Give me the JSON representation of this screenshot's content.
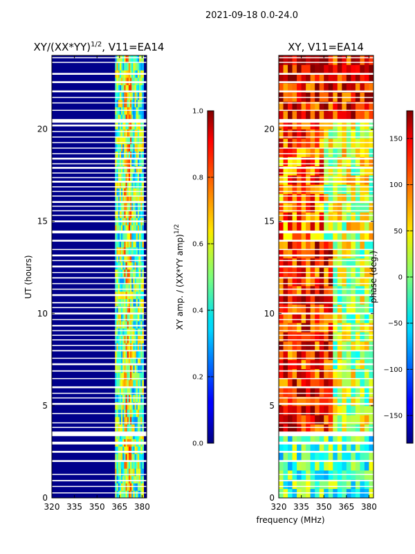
{
  "suptitle": "2021-09-18 0.0-24.0",
  "chart_data": [
    {
      "type": "heatmap",
      "title": "XY/(XX*YY)^(1/2), V11=EA14",
      "title_main": "XY/(XX*YY)",
      "title_exp": "1/2",
      "title_rest": ", V11=EA14",
      "xlabel": "",
      "ylabel": "UT (hours)",
      "xlim": [
        320,
        383
      ],
      "ylim": [
        0,
        24
      ],
      "xticks": [
        320,
        335,
        350,
        365,
        380
      ],
      "yticks": [
        0,
        5,
        10,
        15,
        20
      ],
      "colormap": "jet",
      "colorbar": {
        "label_main": "XY amp. / (XX*YY amp)",
        "label_exp": "1/2",
        "range": [
          0.0,
          1.0
        ],
        "ticks": [
          "0.0",
          "0.2",
          "0.4",
          "0.6",
          "0.8",
          "1.0"
        ],
        "tick_values": [
          0.0,
          0.2,
          0.4,
          0.6,
          0.8,
          1.0
        ]
      },
      "bright_band_mhz": [
        362,
        381
      ]
    },
    {
      "type": "heatmap",
      "title": "XY, V11=EA14",
      "xlabel": "frequency (MHz)",
      "ylabel": "",
      "xlim": [
        320,
        383
      ],
      "ylim": [
        0,
        24
      ],
      "xticks": [
        320,
        335,
        350,
        365,
        380
      ],
      "yticks": [
        0,
        5,
        10,
        15,
        20
      ],
      "colormap": "jet",
      "colorbar": {
        "label": "phase (deg.)",
        "range": [
          -180,
          180
        ],
        "ticks": [
          "150",
          "100",
          "50",
          "0",
          "−50",
          "−100",
          "−150"
        ],
        "tick_values": [
          150,
          100,
          50,
          0,
          -50,
          -100,
          -150
        ]
      }
    }
  ],
  "flag_gaps_hours": [
    [
      0.25,
      0.3
    ],
    [
      0.6,
      0.65
    ],
    [
      0.9,
      0.97
    ],
    [
      1.25,
      1.3
    ],
    [
      1.95,
      2.05
    ],
    [
      2.45,
      2.55
    ],
    [
      2.9,
      3.05
    ],
    [
      3.35,
      3.6
    ],
    [
      3.8,
      3.85
    ],
    [
      4.05,
      4.1
    ],
    [
      4.55,
      4.6
    ],
    [
      5.05,
      5.15
    ],
    [
      5.4,
      5.45
    ],
    [
      5.65,
      5.7
    ],
    [
      5.95,
      6.05
    ],
    [
      6.45,
      6.5
    ],
    [
      6.85,
      6.92
    ],
    [
      7.2,
      7.3
    ],
    [
      7.55,
      7.6
    ],
    [
      7.95,
      8.02
    ],
    [
      8.25,
      8.3
    ],
    [
      8.55,
      8.6
    ],
    [
      8.8,
      8.85
    ],
    [
      9.05,
      9.1
    ],
    [
      9.3,
      9.38
    ],
    [
      9.65,
      9.7
    ],
    [
      9.95,
      10.05
    ],
    [
      10.3,
      10.35
    ],
    [
      10.55,
      10.62
    ],
    [
      10.95,
      11.05
    ],
    [
      11.3,
      11.35
    ],
    [
      11.6,
      11.65
    ],
    [
      11.9,
      11.97
    ],
    [
      12.2,
      12.25
    ],
    [
      12.5,
      12.6
    ],
    [
      12.85,
      12.9
    ],
    [
      13.1,
      13.2
    ],
    [
      13.45,
      13.5
    ],
    [
      13.9,
      14.0
    ],
    [
      14.35,
      14.5
    ],
    [
      14.95,
      15.05
    ],
    [
      15.3,
      15.35
    ],
    [
      15.55,
      15.6
    ],
    [
      15.8,
      15.85
    ],
    [
      16.0,
      16.1
    ],
    [
      16.35,
      16.4
    ],
    [
      16.6,
      16.65
    ],
    [
      16.85,
      16.9
    ],
    [
      17.1,
      17.2
    ],
    [
      17.35,
      17.4
    ],
    [
      17.6,
      17.65
    ],
    [
      17.85,
      17.95
    ],
    [
      18.1,
      18.15
    ],
    [
      18.35,
      18.45
    ],
    [
      18.65,
      18.7
    ],
    [
      18.95,
      19.0
    ],
    [
      19.25,
      19.3
    ],
    [
      19.55,
      19.6
    ],
    [
      19.85,
      19.9
    ],
    [
      20.15,
      20.25
    ],
    [
      20.35,
      20.55
    ],
    [
      21.0,
      21.05
    ],
    [
      21.4,
      21.45
    ],
    [
      21.7,
      21.75
    ],
    [
      22.0,
      22.1
    ],
    [
      22.5,
      22.6
    ],
    [
      22.95,
      23.05
    ],
    [
      23.6,
      23.65
    ],
    [
      23.85,
      23.9
    ]
  ]
}
